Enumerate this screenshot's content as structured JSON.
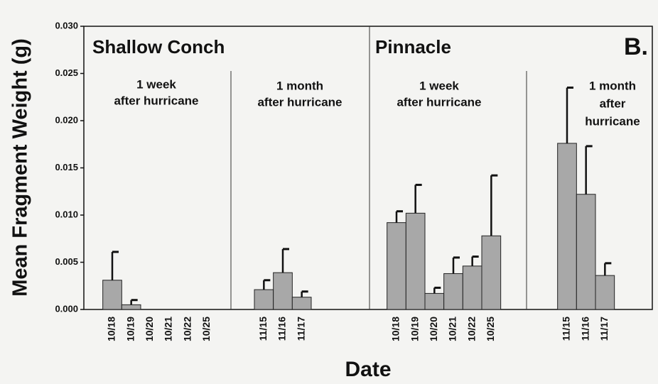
{
  "chart_data": {
    "type": "bar",
    "y_label": "Mean Fragment Weight (g)",
    "x_label": "Date",
    "categories": [
      null,
      "10/18",
      "10/19",
      "10/20",
      "10/21",
      "10/22",
      "10/25",
      null,
      null,
      "11/15",
      "11/16",
      "11/17",
      null,
      null,
      null,
      null,
      "10/18",
      "10/19",
      "10/20",
      "10/21",
      "10/22",
      "10/25",
      null,
      null,
      null,
      "11/15",
      "11/16",
      "11/17",
      null,
      null
    ],
    "series": [
      {
        "color": "#a8a8a8",
        "values": [
          null,
          0.0031,
          0.0005,
          0,
          0,
          0,
          0,
          null,
          null,
          0.0021,
          0.0039,
          0.0013,
          null,
          null,
          null,
          null,
          0.0092,
          0.0102,
          0.0017,
          0.0038,
          0.0046,
          0.0078,
          null,
          null,
          null,
          0.0176,
          0.0122,
          0.0036,
          null,
          null
        ],
        "errors": [
          null,
          0.003,
          0.0005,
          null,
          null,
          null,
          null,
          null,
          null,
          0.001,
          0.0025,
          0.0006,
          null,
          null,
          null,
          null,
          0.0012,
          0.003,
          0.0006,
          0.0017,
          0.001,
          0.0064,
          null,
          null,
          null,
          0.0059,
          0.0051,
          0.0013,
          null,
          null
        ]
      }
    ],
    "ylim": [
      0,
      0.03
    ],
    "yticks": [
      {
        "value": 0,
        "label": "0.000"
      },
      {
        "value": 0.005,
        "label": "0.005"
      },
      {
        "value": 0.01,
        "label": "0.010"
      },
      {
        "value": 0.015,
        "label": "0.015"
      },
      {
        "value": 0.02,
        "label": "0.020"
      },
      {
        "value": 0.025,
        "label": "0.025"
      },
      {
        "value": 0.03,
        "label": "0.030"
      }
    ],
    "annotations": [
      {
        "lines": [
          "Shallow Conch"
        ]
      },
      {
        "lines": [
          "Pinnacle"
        ]
      },
      {
        "lines": [
          "B."
        ]
      },
      {
        "lines": [
          "1 week",
          "after hurricane"
        ]
      },
      {
        "lines": [
          "1 month",
          "after hurricane"
        ]
      },
      {
        "lines": [
          "1 week",
          "after hurricane"
        ]
      },
      {
        "lines": [
          "1 month",
          "after",
          "hurricane"
        ]
      }
    ]
  }
}
